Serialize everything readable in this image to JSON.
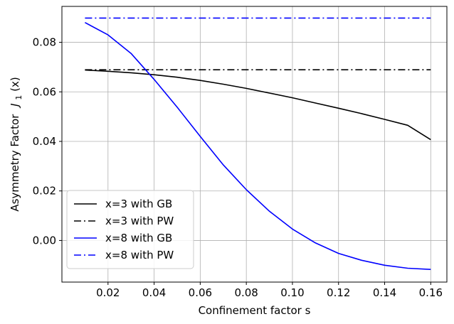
{
  "chart_data": {
    "type": "line",
    "xlabel": "Confinement factor s",
    "ylabel": "Asymmetry Factor",
    "ylabel_math": "J",
    "ylabel_math_sub": "1",
    "ylabel_math_arg": "(x)",
    "xlim": [
      0.0,
      0.167
    ],
    "ylim": [
      -0.0168,
      0.0945
    ],
    "xticks": [
      0.02,
      0.04,
      0.06,
      0.08,
      0.1,
      0.12,
      0.14,
      0.16
    ],
    "xtick_labels": [
      "0.02",
      "0.04",
      "0.06",
      "0.08",
      "0.10",
      "0.12",
      "0.14",
      "0.16"
    ],
    "yticks": [
      0.0,
      0.02,
      0.04,
      0.06,
      0.08
    ],
    "ytick_labels": [
      "0.00",
      "0.02",
      "0.04",
      "0.06",
      "0.08"
    ],
    "grid": true,
    "legend_position": "lower-left",
    "series": [
      {
        "name": "x=3 with GB",
        "color": "#000000",
        "dash": "solid",
        "x": [
          0.01,
          0.02,
          0.03,
          0.04,
          0.05,
          0.06,
          0.07,
          0.08,
          0.09,
          0.1,
          0.11,
          0.12,
          0.13,
          0.14,
          0.15,
          0.16
        ],
        "y": [
          0.0688,
          0.0683,
          0.0677,
          0.0669,
          0.0659,
          0.0646,
          0.0631,
          0.0614,
          0.0595,
          0.0576,
          0.0555,
          0.0534,
          0.0512,
          0.0489,
          0.0465,
          0.0407
        ]
      },
      {
        "name": "x=3 with PW",
        "color": "#000000",
        "dash": "dashdot",
        "x": [
          0.01,
          0.16
        ],
        "y": [
          0.0689,
          0.0689
        ]
      },
      {
        "name": "x=8 with GB",
        "color": "#0000ff",
        "dash": "solid",
        "x": [
          0.01,
          0.02,
          0.03,
          0.04,
          0.05,
          0.06,
          0.07,
          0.08,
          0.09,
          0.1,
          0.11,
          0.12,
          0.13,
          0.14,
          0.15,
          0.16
        ],
        "y": [
          0.088,
          0.083,
          0.0755,
          0.065,
          0.0538,
          0.042,
          0.0305,
          0.0205,
          0.0118,
          0.0046,
          -0.001,
          -0.0052,
          -0.008,
          -0.01,
          -0.0112,
          -0.0117
        ]
      },
      {
        "name": "x=8 with PW",
        "color": "#0000ff",
        "dash": "dashdot",
        "x": [
          0.01,
          0.16
        ],
        "y": [
          0.0898,
          0.0898
        ]
      }
    ]
  }
}
